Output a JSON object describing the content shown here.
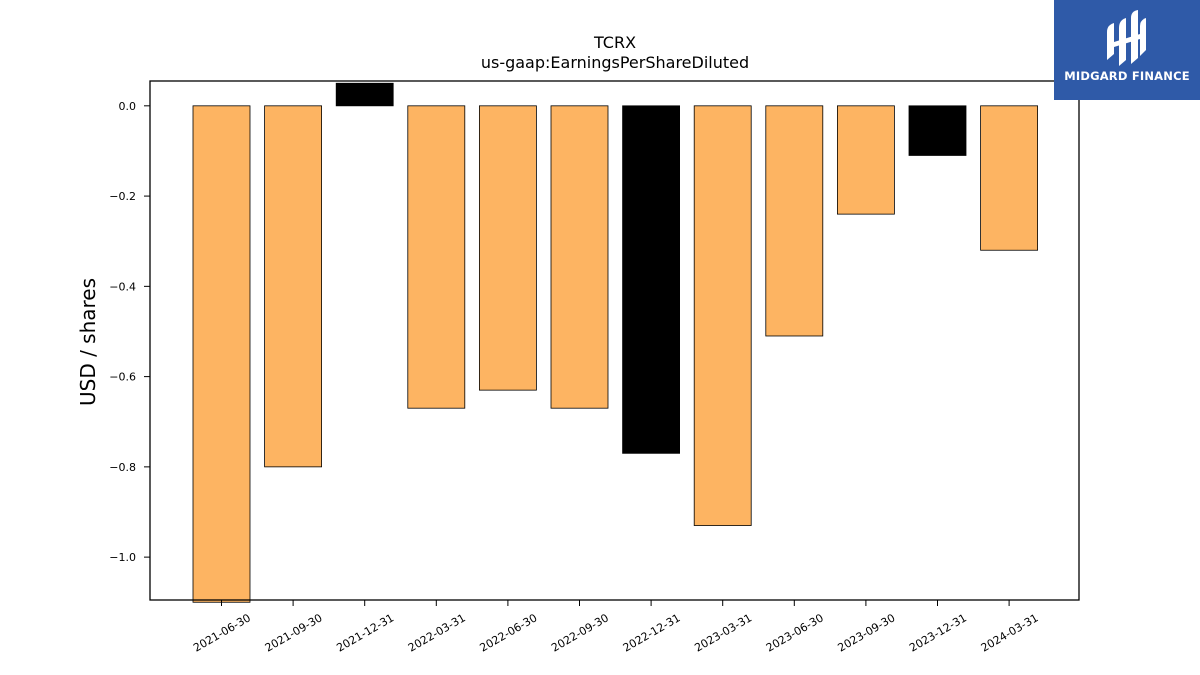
{
  "chart_data": {
    "type": "bar",
    "title": "TCRX",
    "subtitle": "us-gaap:EarningsPerShareDiluted",
    "xlabel": "",
    "ylabel": "USD / shares",
    "categories": [
      "2021-06-30",
      "2021-09-30",
      "2021-12-31",
      "2022-03-31",
      "2022-06-30",
      "2022-09-30",
      "2022-12-31",
      "2023-03-31",
      "2023-06-30",
      "2023-09-30",
      "2023-12-31",
      "2024-03-31"
    ],
    "values": [
      -1.1,
      -0.8,
      0.05,
      -0.67,
      -0.63,
      -0.67,
      -0.77,
      -0.93,
      -0.51,
      -0.24,
      -0.11,
      -0.32
    ],
    "bar_colors": [
      "#fdb462",
      "#fdb462",
      "#000000",
      "#fdb462",
      "#fdb462",
      "#fdb462",
      "#000000",
      "#fdb462",
      "#fdb462",
      "#fdb462",
      "#000000",
      "#fdb462"
    ],
    "ylim": [
      -1.095,
      0.055
    ],
    "yticks": [
      0.0,
      -0.2,
      -0.4,
      -0.6,
      -0.8,
      -1.0
    ],
    "ytick_labels": [
      "0.0",
      "−0.2",
      "−0.4",
      "−0.6",
      "−0.8",
      "−1.0"
    ],
    "grid": false,
    "legend": "none"
  },
  "logo": {
    "text": "MIDGARD FINANCE",
    "background": "#2f5aa8"
  }
}
